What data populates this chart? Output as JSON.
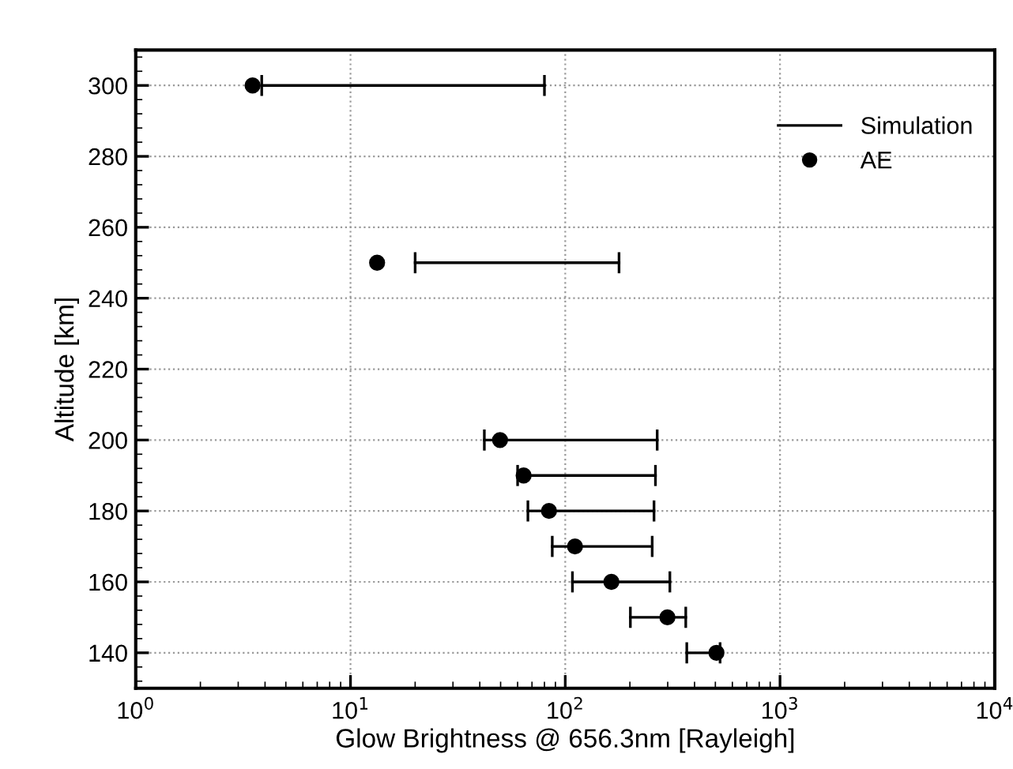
{
  "chart_data": {
    "type": "scatter",
    "xlabel": "Glow Brightness @ 656.3nm [Rayleigh]",
    "ylabel": "Altitude [km]",
    "log": "x",
    "xlim": [
      1,
      10000
    ],
    "xticks": [
      {
        "value": 1,
        "label": "10$^{0}$"
      },
      {
        "value": 10,
        "label": "10$^{1}$"
      },
      {
        "value": 100,
        "label": "10$^{2}$"
      },
      {
        "value": 1000,
        "label": "10$^{3}$"
      },
      {
        "value": 10000,
        "label": "10$^{4}$"
      }
    ],
    "ylim": [
      130,
      310
    ],
    "yticks": [
      140,
      160,
      180,
      200,
      220,
      240,
      260,
      280,
      300
    ],
    "grid": true,
    "legend": "top right",
    "series": [
      {
        "name": "Simulation",
        "type": "line",
        "color": "#000000",
        "x": [
          3.86,
          80,
          null,
          20,
          178,
          null,
          42,
          268,
          null,
          60,
          263,
          null,
          67,
          259,
          null,
          87,
          254,
          null,
          108,
          307,
          null,
          201,
          364,
          null,
          368,
          526
        ],
        "values": [
          300,
          300,
          null,
          250,
          250,
          null,
          200,
          200,
          null,
          190,
          190,
          null,
          180,
          180,
          null,
          170,
          170,
          null,
          160,
          160,
          null,
          150,
          150,
          null,
          140,
          140
        ]
      },
      {
        "name": "AE",
        "color": "#000000",
        "marker": "circle",
        "x": [
          3.5,
          13.3,
          49.7,
          64,
          84,
          111,
          164,
          299,
          506
        ],
        "values": [
          300,
          250,
          200,
          190,
          180,
          170,
          160,
          150,
          140
        ]
      }
    ]
  }
}
